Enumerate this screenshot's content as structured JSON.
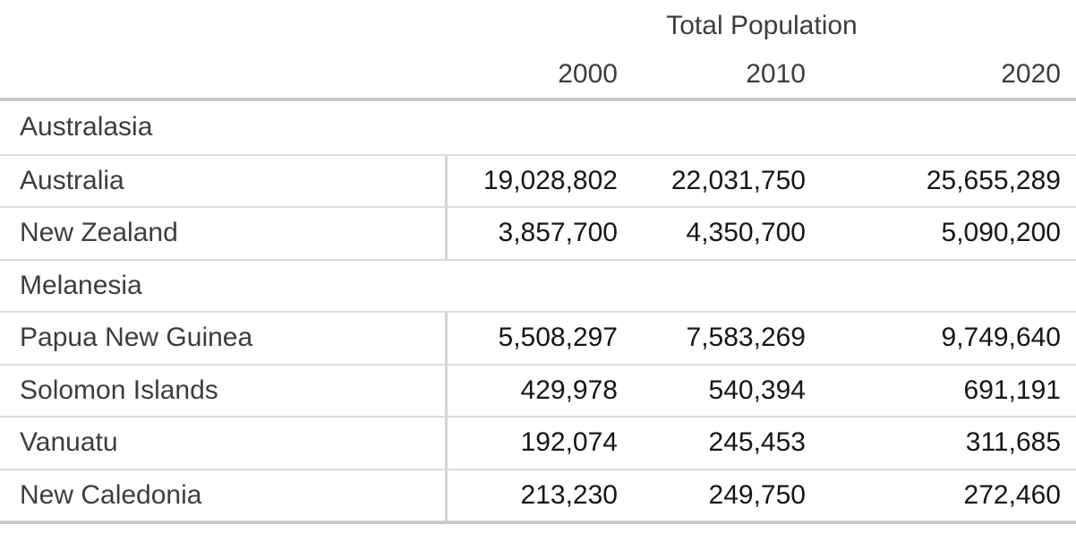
{
  "table": {
    "title": "Total Population",
    "year_columns": [
      "2000",
      "2010",
      "2020"
    ],
    "groups": [
      {
        "name": "Australasia",
        "rows": [
          {
            "label": "Australia",
            "values": [
              "19,028,802",
              "22,031,750",
              "25,655,289"
            ]
          },
          {
            "label": "New Zealand",
            "values": [
              "3,857,700",
              "4,350,700",
              "5,090,200"
            ]
          }
        ]
      },
      {
        "name": "Melanesia",
        "rows": [
          {
            "label": "Papua New Guinea",
            "values": [
              "5,508,297",
              "7,583,269",
              "9,749,640"
            ]
          },
          {
            "label": "Solomon Islands",
            "values": [
              "429,978",
              "540,394",
              "691,191"
            ]
          },
          {
            "label": "Vanuatu",
            "values": [
              "192,074",
              "245,453",
              "311,685"
            ]
          },
          {
            "label": "New Caledonia",
            "values": [
              "213,230",
              "249,750",
              "272,460"
            ]
          }
        ]
      }
    ]
  },
  "chart_data": {
    "type": "table",
    "title": "Total Population",
    "columns": [
      "2000",
      "2010",
      "2020"
    ],
    "row_groups": [
      {
        "group": "Australasia",
        "rows": [
          {
            "label": "Australia",
            "values": [
              19028802,
              22031750,
              25655289
            ]
          },
          {
            "label": "New Zealand",
            "values": [
              3857700,
              4350700,
              5090200
            ]
          }
        ]
      },
      {
        "group": "Melanesia",
        "rows": [
          {
            "label": "Papua New Guinea",
            "values": [
              5508297,
              7583269,
              9749640
            ]
          },
          {
            "label": "Solomon Islands",
            "values": [
              429978,
              540394,
              691191
            ]
          },
          {
            "label": "Vanuatu",
            "values": [
              192074,
              245453,
              311685
            ]
          },
          {
            "label": "New Caledonia",
            "values": [
              213230,
              249750,
              272460
            ]
          }
        ]
      }
    ]
  }
}
